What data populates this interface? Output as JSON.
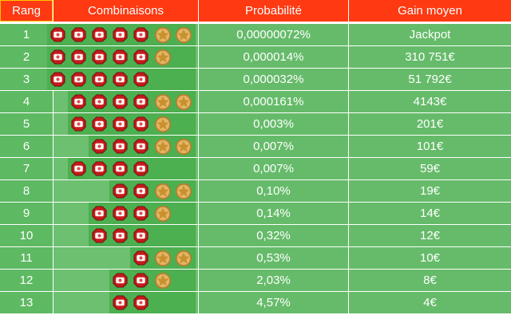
{
  "header": {
    "rang": "Rang",
    "combinaisons": "Combinaisons",
    "probabilite": "Probabilité",
    "gain": "Gain moyen"
  },
  "colors": {
    "header_bg": "#ff3a12",
    "row_bg": "#66bb6a",
    "ball": "#cc1f1f",
    "star": "#d4a24c"
  },
  "icons": {
    "ball": "lottery-ball-icon",
    "star": "lucky-star-icon"
  },
  "rows": [
    {
      "rang": "1",
      "balls": 5,
      "stars": 2,
      "probabilite": "0,00000072%",
      "gain": "Jackpot"
    },
    {
      "rang": "2",
      "balls": 5,
      "stars": 1,
      "probabilite": "0,000014%",
      "gain": "310 751€"
    },
    {
      "rang": "3",
      "balls": 5,
      "stars": 0,
      "probabilite": "0,000032%",
      "gain": "51 792€"
    },
    {
      "rang": "4",
      "balls": 4,
      "stars": 2,
      "probabilite": "0,000161%",
      "gain": "4143€"
    },
    {
      "rang": "5",
      "balls": 4,
      "stars": 1,
      "probabilite": "0,003%",
      "gain": "201€"
    },
    {
      "rang": "6",
      "balls": 3,
      "stars": 2,
      "probabilite": "0,007%",
      "gain": "101€"
    },
    {
      "rang": "7",
      "balls": 4,
      "stars": 0,
      "probabilite": "0,007%",
      "gain": "59€"
    },
    {
      "rang": "8",
      "balls": 2,
      "stars": 2,
      "probabilite": "0,10%",
      "gain": "19€"
    },
    {
      "rang": "9",
      "balls": 3,
      "stars": 1,
      "probabilite": "0,14%",
      "gain": "14€"
    },
    {
      "rang": "10",
      "balls": 3,
      "stars": 0,
      "probabilite": "0,32%",
      "gain": "12€"
    },
    {
      "rang": "11",
      "balls": 1,
      "stars": 2,
      "probabilite": "0,53%",
      "gain": "10€"
    },
    {
      "rang": "12",
      "balls": 2,
      "stars": 1,
      "probabilite": "2,03%",
      "gain": "8€"
    },
    {
      "rang": "13",
      "balls": 2,
      "stars": 0,
      "probabilite": "4,57%",
      "gain": "4€"
    }
  ]
}
